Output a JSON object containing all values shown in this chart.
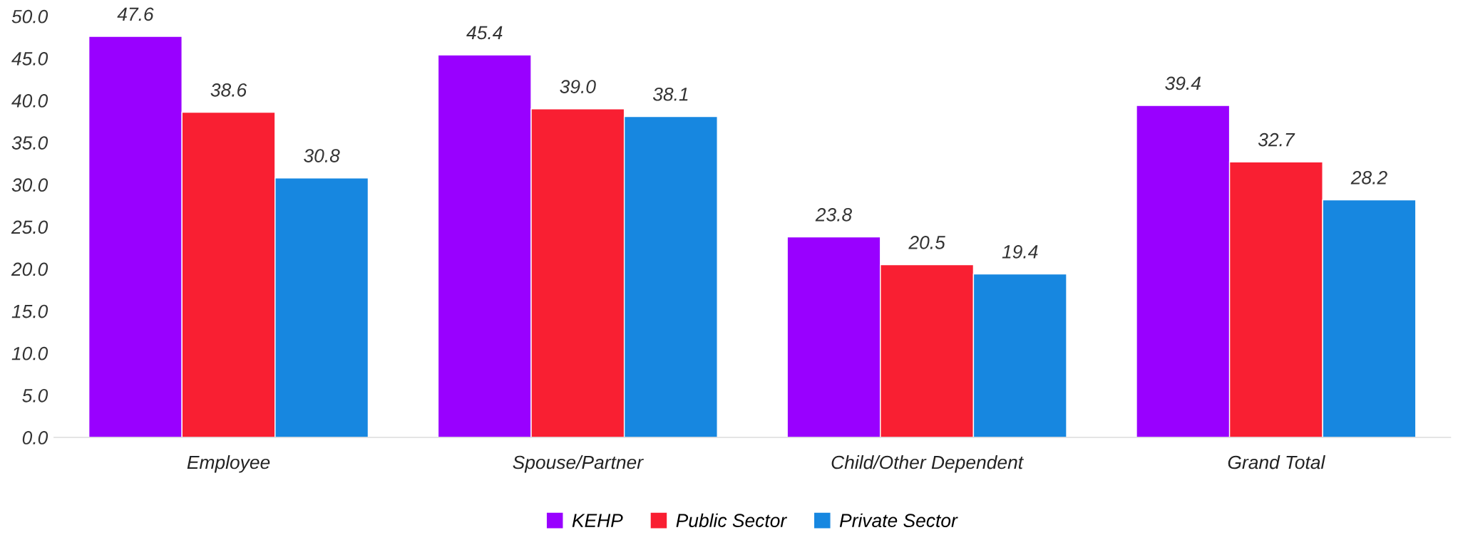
{
  "chart_data": {
    "type": "bar",
    "categories": [
      "Employee",
      "Spouse/Partner",
      "Child/Other Dependent",
      "Grand Total"
    ],
    "series": [
      {
        "name": "KEHP",
        "color": "#9900ff",
        "values": [
          47.6,
          45.4,
          23.8,
          39.4
        ],
        "value_labels": [
          "47.6",
          "45.4",
          "23.8",
          "39.4"
        ]
      },
      {
        "name": "Public Sector",
        "color": "#f91f32",
        "values": [
          38.6,
          39.0,
          20.5,
          32.7
        ],
        "value_labels": [
          "38.6",
          "39.0",
          "20.5",
          "32.7"
        ]
      },
      {
        "name": "Private Sector",
        "color": "#1787e0",
        "values": [
          30.8,
          38.1,
          19.4,
          28.2
        ],
        "value_labels": [
          "30.8",
          "38.1",
          "19.4",
          "28.2"
        ]
      }
    ],
    "ylim": [
      0,
      50
    ],
    "yticks": [
      {
        "value": 0,
        "label": "0.0"
      },
      {
        "value": 5,
        "label": "5.0"
      },
      {
        "value": 10,
        "label": "10.0"
      },
      {
        "value": 15,
        "label": "15.0"
      },
      {
        "value": 20,
        "label": "20.0"
      },
      {
        "value": 25,
        "label": "25.0"
      },
      {
        "value": 30,
        "label": "30.0"
      },
      {
        "value": 35,
        "label": "35.0"
      },
      {
        "value": 40,
        "label": "40.0"
      },
      {
        "value": 45,
        "label": "45.0"
      },
      {
        "value": 50,
        "label": "50.0"
      }
    ],
    "grid": false,
    "legend": "bottom"
  }
}
